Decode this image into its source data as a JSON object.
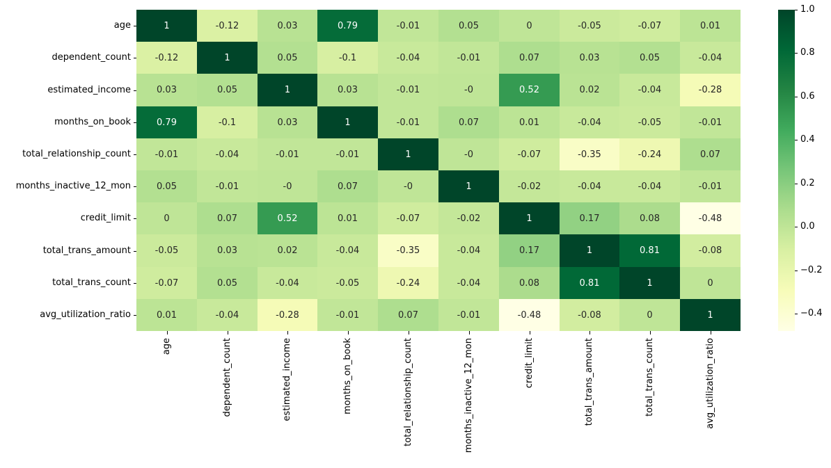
{
  "chart_data": {
    "type": "heatmap",
    "title": "",
    "xlabel": "",
    "ylabel": "",
    "labels": [
      "age",
      "dependent_count",
      "estimated_income",
      "months_on_book",
      "total_relationship_count",
      "months_inactive_12_mon",
      "credit_limit",
      "total_trans_amount",
      "total_trans_count",
      "avg_utilization_ratio"
    ],
    "matrix": [
      [
        "1",
        "-0.12",
        "0.03",
        "0.79",
        "-0.01",
        "0.05",
        "0",
        "-0.05",
        "-0.07",
        "0.01"
      ],
      [
        "-0.12",
        "1",
        "0.05",
        "-0.1",
        "-0.04",
        "-0.01",
        "0.07",
        "0.03",
        "0.05",
        "-0.04"
      ],
      [
        "0.03",
        "0.05",
        "1",
        "0.03",
        "-0.01",
        "-0",
        "0.52",
        "0.02",
        "-0.04",
        "-0.28"
      ],
      [
        "0.79",
        "-0.1",
        "0.03",
        "1",
        "-0.01",
        "0.07",
        "0.01",
        "-0.04",
        "-0.05",
        "-0.01"
      ],
      [
        "-0.01",
        "-0.04",
        "-0.01",
        "-0.01",
        "1",
        "-0",
        "-0.07",
        "-0.35",
        "-0.24",
        "0.07"
      ],
      [
        "0.05",
        "-0.01",
        "-0",
        "0.07",
        "-0",
        "1",
        "-0.02",
        "-0.04",
        "-0.04",
        "-0.01"
      ],
      [
        "0",
        "0.07",
        "0.52",
        "0.01",
        "-0.07",
        "-0.02",
        "1",
        "0.17",
        "0.08",
        "-0.48"
      ],
      [
        "-0.05",
        "0.03",
        "0.02",
        "-0.04",
        "-0.35",
        "-0.04",
        "0.17",
        "1",
        "0.81",
        "-0.08"
      ],
      [
        "-0.07",
        "0.05",
        "-0.04",
        "-0.05",
        "-0.24",
        "-0.04",
        "0.08",
        "0.81",
        "1",
        "0"
      ],
      [
        "0.01",
        "-0.04",
        "-0.28",
        "-0.01",
        "0.07",
        "-0.01",
        "-0.48",
        "-0.08",
        "0",
        "1"
      ]
    ],
    "vmin": -0.48,
    "vmax": 1.0,
    "colormap": {
      "name": "YlGn",
      "stops": [
        "#ffffe5",
        "#f7fcb9",
        "#d9f0a3",
        "#addd8e",
        "#78c679",
        "#41ab5d",
        "#238443",
        "#006837",
        "#004529"
      ]
    },
    "colorbar": {
      "tick_labels": [
        "1.0",
        "0.8",
        "0.6",
        "0.4",
        "0.2",
        "0.0",
        "−0.2",
        "−0.4"
      ],
      "tick_values": [
        1.0,
        0.8,
        0.6,
        0.4,
        0.2,
        0.0,
        -0.2,
        -0.4
      ],
      "position": "right"
    },
    "annotation_light_text": "#ffffff",
    "annotation_dark_text": "#262626",
    "axis_text_color": "#000000",
    "background": "#ffffff",
    "grid": false,
    "legend": false
  }
}
